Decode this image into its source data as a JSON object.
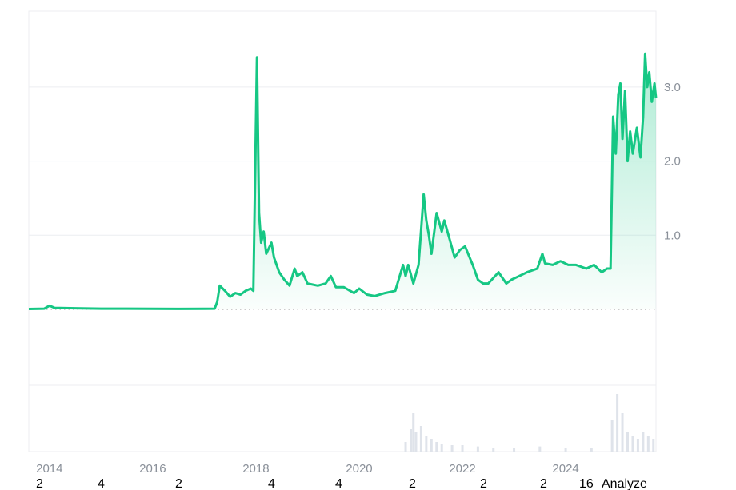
{
  "chart_data": {
    "type": "area",
    "title": "",
    "xlabel": "",
    "ylabel": "",
    "xlim": [
      2013.6,
      2025.75
    ],
    "ylim": [
      0,
      3.9
    ],
    "grid": true,
    "line_color": "#16c784",
    "y_ticks": [
      "1.0",
      "2.0",
      "3.0"
    ],
    "y_tick_values": [
      1,
      2,
      3
    ],
    "x_ticks": [
      "2014",
      "2016",
      "2018",
      "2020",
      "2022",
      "2024"
    ],
    "x_tick_values": [
      2014,
      2016,
      2018,
      2020,
      2022,
      2024
    ],
    "series": [
      {
        "x": [
          2013.6,
          2013.9,
          2014.0,
          2014.1,
          2014.5,
          2015.0,
          2015.5,
          2016.0,
          2016.5,
          2017.0,
          2017.2,
          2017.25,
          2017.3,
          2017.4,
          2017.5,
          2017.6,
          2017.7,
          2017.8,
          2017.9,
          2017.95,
          2018.02,
          2018.06,
          2018.1,
          2018.15,
          2018.2,
          2018.3,
          2018.35,
          2018.45,
          2018.55,
          2018.65,
          2018.75,
          2018.8,
          2018.9,
          2019.0,
          2019.2,
          2019.35,
          2019.45,
          2019.55,
          2019.7,
          2019.9,
          2020.0,
          2020.15,
          2020.3,
          2020.5,
          2020.7,
          2020.85,
          2020.9,
          2020.95,
          2021.05,
          2021.15,
          2021.25,
          2021.3,
          2021.35,
          2021.4,
          2021.5,
          2021.6,
          2021.65,
          2021.75,
          2021.85,
          2021.95,
          2022.05,
          2022.2,
          2022.3,
          2022.4,
          2022.5,
          2022.7,
          2022.85,
          2022.95,
          2023.1,
          2023.25,
          2023.45,
          2023.55,
          2023.6,
          2023.75,
          2023.9,
          2024.05,
          2024.2,
          2024.4,
          2024.55,
          2024.7,
          2024.8,
          2024.87,
          2024.92,
          2024.97,
          2025.02,
          2025.06,
          2025.1,
          2025.15,
          2025.2,
          2025.25,
          2025.3,
          2025.38,
          2025.45,
          2025.5,
          2025.54,
          2025.58,
          2025.62,
          2025.67,
          2025.72,
          2025.75
        ],
        "y": [
          0.005,
          0.01,
          0.05,
          0.02,
          0.015,
          0.01,
          0.01,
          0.008,
          0.007,
          0.008,
          0.01,
          0.1,
          0.32,
          0.25,
          0.17,
          0.22,
          0.2,
          0.25,
          0.28,
          0.25,
          3.4,
          1.3,
          0.9,
          1.05,
          0.75,
          0.9,
          0.7,
          0.5,
          0.4,
          0.32,
          0.55,
          0.45,
          0.5,
          0.35,
          0.32,
          0.35,
          0.45,
          0.3,
          0.3,
          0.22,
          0.28,
          0.2,
          0.18,
          0.22,
          0.25,
          0.6,
          0.45,
          0.6,
          0.35,
          0.6,
          1.55,
          1.2,
          1.0,
          0.75,
          1.3,
          1.05,
          1.2,
          0.95,
          0.7,
          0.8,
          0.85,
          0.6,
          0.4,
          0.35,
          0.35,
          0.5,
          0.35,
          0.4,
          0.45,
          0.5,
          0.55,
          0.75,
          0.62,
          0.6,
          0.65,
          0.6,
          0.6,
          0.55,
          0.6,
          0.5,
          0.55,
          0.55,
          2.6,
          2.1,
          2.9,
          3.05,
          2.3,
          2.95,
          2.0,
          2.4,
          2.1,
          2.45,
          2.05,
          2.6,
          3.45,
          3.0,
          3.2,
          2.8,
          3.05,
          2.85
        ]
      }
    ],
    "volume": {
      "x": [
        2020.9,
        2021.0,
        2021.05,
        2021.1,
        2021.2,
        2021.3,
        2021.4,
        2021.5,
        2021.6,
        2021.8,
        2022.0,
        2022.3,
        2022.6,
        2023.0,
        2023.5,
        2024.0,
        2024.5,
        2024.9,
        2025.0,
        2025.1,
        2025.2,
        2025.3,
        2025.4,
        2025.5,
        2025.6,
        2025.7
      ],
      "y": [
        0.15,
        0.35,
        0.6,
        0.3,
        0.4,
        0.25,
        0.2,
        0.15,
        0.12,
        0.1,
        0.1,
        0.08,
        0.06,
        0.06,
        0.08,
        0.05,
        0.05,
        0.5,
        0.9,
        0.6,
        0.3,
        0.25,
        0.2,
        0.3,
        0.25,
        0.2
      ]
    }
  },
  "overlay_text": {
    "digits": [
      "2",
      "4",
      "2",
      "4",
      "4",
      "2",
      "2",
      "2"
    ],
    "analyze": "Analyze",
    "sixteen": "16"
  }
}
